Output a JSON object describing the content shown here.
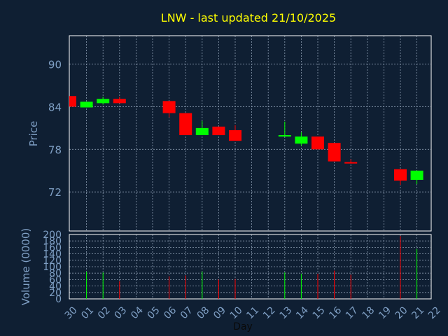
{
  "chart_data": [
    {
      "type": "candlestick",
      "title": "LNW - last updated 21/10/2025",
      "ylabel": "Price",
      "ylim": [
        66.5,
        94
      ],
      "yticks": [
        72,
        78,
        84,
        90
      ],
      "grid": true,
      "days": [
        "30",
        "01",
        "02",
        "03",
        "04",
        "05",
        "06",
        "07",
        "08",
        "09",
        "10",
        "11",
        "12",
        "13",
        "14",
        "15",
        "16",
        "17",
        "18",
        "19",
        "20",
        "21",
        "22"
      ],
      "candles": [
        {
          "day": "30",
          "open": 85.5,
          "close": 84.0,
          "high": 85.5,
          "low": 84.0
        },
        {
          "day": "01",
          "open": 83.9,
          "close": 84.7,
          "high": 84.7,
          "low": 83.9
        },
        {
          "day": "02",
          "open": 84.5,
          "close": 85.1,
          "high": 85.4,
          "low": 84.3
        },
        {
          "day": "03",
          "open": 85.1,
          "close": 84.5,
          "high": 85.4,
          "low": 84.5
        },
        {
          "day": "06",
          "open": 84.8,
          "close": 83.1,
          "high": 84.8,
          "low": 82.5
        },
        {
          "day": "07",
          "open": 83.1,
          "close": 80.0,
          "high": 83.1,
          "low": 80.0
        },
        {
          "day": "08",
          "open": 80.0,
          "close": 81.0,
          "high": 82.0,
          "low": 80.0
        },
        {
          "day": "09",
          "open": 81.2,
          "close": 80.0,
          "high": 81.2,
          "low": 80.0
        },
        {
          "day": "10",
          "open": 80.7,
          "close": 79.2,
          "high": 81.4,
          "low": 79.2
        },
        {
          "day": "13",
          "open": 79.8,
          "close": 80.0,
          "high": 81.9,
          "low": 79.8
        },
        {
          "day": "14",
          "open": 78.8,
          "close": 79.8,
          "high": 80.4,
          "low": 78.5
        },
        {
          "day": "15",
          "open": 79.8,
          "close": 78.0,
          "high": 79.8,
          "low": 78.0
        },
        {
          "day": "16",
          "open": 78.9,
          "close": 76.3,
          "high": 78.9,
          "low": 76.3
        },
        {
          "day": "17",
          "open": 76.2,
          "close": 76.0,
          "high": 76.6,
          "low": 76.0
        },
        {
          "day": "20",
          "open": 75.2,
          "close": 73.6,
          "high": 75.2,
          "low": 73.0
        },
        {
          "day": "21",
          "open": 73.7,
          "close": 75.0,
          "high": 75.0,
          "low": 73.1
        }
      ]
    },
    {
      "type": "bar",
      "ylabel": "Volume (0000)",
      "xlabel": "Day",
      "ylim": [
        0,
        200
      ],
      "yticks": [
        0,
        20,
        40,
        60,
        80,
        100,
        120,
        140,
        160,
        180,
        200
      ],
      "grid": true,
      "bars": [
        {
          "day": "01",
          "value": 85,
          "direction": "up"
        },
        {
          "day": "02",
          "value": 82,
          "direction": "up"
        },
        {
          "day": "03",
          "value": 55,
          "direction": "down"
        },
        {
          "day": "06",
          "value": 70,
          "direction": "down"
        },
        {
          "day": "07",
          "value": 73,
          "direction": "down"
        },
        {
          "day": "08",
          "value": 85,
          "direction": "up"
        },
        {
          "day": "09",
          "value": 60,
          "direction": "down"
        },
        {
          "day": "10",
          "value": 62,
          "direction": "down"
        },
        {
          "day": "13",
          "value": 82,
          "direction": "up"
        },
        {
          "day": "14",
          "value": 78,
          "direction": "up"
        },
        {
          "day": "15",
          "value": 78,
          "direction": "down"
        },
        {
          "day": "16",
          "value": 88,
          "direction": "down"
        },
        {
          "day": "17",
          "value": 75,
          "direction": "down"
        },
        {
          "day": "20",
          "value": 195,
          "direction": "down"
        },
        {
          "day": "21",
          "value": 155,
          "direction": "up"
        }
      ]
    }
  ],
  "colors": {
    "background": "#0f1f33",
    "axis": "#ffffff",
    "grid": "#8a9bb0",
    "title": "#ffff00",
    "label": "#7f9fc4",
    "tick": "#7f9fc4",
    "up": "#00ff00",
    "down": "#ff0000"
  }
}
